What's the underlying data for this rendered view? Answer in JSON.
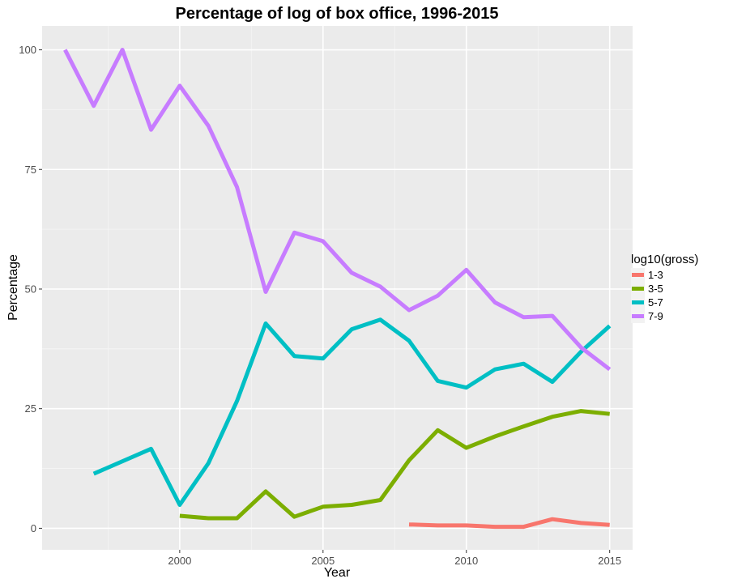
{
  "chart_data": {
    "type": "line",
    "title": "Percentage of log of box office, 1996-2015",
    "xlabel": "Year",
    "ylabel": "Percentage",
    "xlim": [
      1995.2,
      2015.8
    ],
    "ylim": [
      -4.5,
      105
    ],
    "x_ticks": [
      2000,
      2005,
      2010,
      2015
    ],
    "x_tick_labels": [
      "2000",
      "2005",
      "2010",
      "2015"
    ],
    "x_minor_ticks": [
      1997.5,
      2002.5,
      2007.5,
      2012.5
    ],
    "y_ticks": [
      0,
      25,
      50,
      75,
      100
    ],
    "y_tick_labels": [
      "0",
      "25",
      "50",
      "75",
      "100"
    ],
    "y_minor_ticks": [
      12.5,
      37.5,
      62.5,
      87.5
    ],
    "grid": true,
    "legend": {
      "title": "log10(gross)",
      "placement": "right"
    },
    "series": [
      {
        "name": "1-3",
        "color": "#F8766D",
        "x": [
          2008,
          2009,
          2010,
          2011,
          2012,
          2013,
          2014,
          2015
        ],
        "values": [
          0.8,
          0.6,
          0.6,
          0.3,
          0.3,
          1.9,
          1.1,
          0.7
        ]
      },
      {
        "name": "3-5",
        "color": "#7CAE00",
        "x": [
          2000,
          2001,
          2002,
          2003,
          2004,
          2005,
          2006,
          2007,
          2008,
          2009,
          2010,
          2011,
          2012,
          2013,
          2014,
          2015
        ],
        "values": [
          2.6,
          2.1,
          2.1,
          7.7,
          2.4,
          4.5,
          4.9,
          5.9,
          14.2,
          20.5,
          16.8,
          19.2,
          21.3,
          23.3,
          24.5,
          23.9
        ]
      },
      {
        "name": "5-7",
        "color": "#00BFC4",
        "x": [
          1997,
          1999,
          2000,
          2001,
          2002,
          2003,
          2004,
          2005,
          2006,
          2007,
          2008,
          2009,
          2010,
          2011,
          2012,
          2013,
          2014,
          2015
        ],
        "values": [
          11.4,
          16.6,
          4.9,
          13.6,
          26.6,
          42.8,
          36.0,
          35.5,
          41.6,
          43.6,
          39.2,
          30.8,
          29.4,
          33.2,
          34.4,
          30.6,
          36.9,
          42.3
        ]
      },
      {
        "name": "7-9",
        "color": "#C77CFF",
        "x": [
          1996,
          1997,
          1998,
          1999,
          2000,
          2001,
          2002,
          2003,
          2004,
          2005,
          2006,
          2007,
          2008,
          2009,
          2010,
          2011,
          2012,
          2013,
          2014,
          2015
        ],
        "values": [
          100,
          88.3,
          100,
          83.3,
          92.5,
          84.1,
          71.3,
          49.4,
          61.8,
          60.0,
          53.4,
          50.5,
          45.6,
          48.6,
          54.0,
          47.2,
          44.1,
          44.4,
          37.8,
          33.2
        ]
      }
    ]
  }
}
